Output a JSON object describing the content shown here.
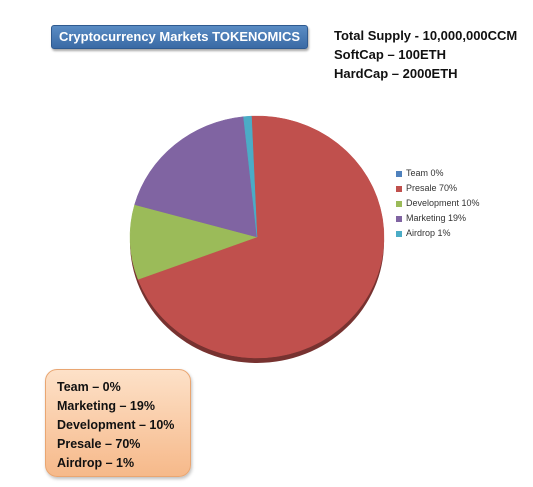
{
  "title": "Cryptocurrency Markets TOKENOMICS",
  "supply_info": [
    "Total Supply - 10,000,000CCM",
    "SoftCap – 100ETH",
    "HardCap – 2000ETH"
  ],
  "chart_data": {
    "type": "pie",
    "title": "",
    "slices": [
      {
        "label": "Team 0%",
        "name": "Team",
        "value": 0,
        "color": "#4f81bd"
      },
      {
        "label": "Presale 70%",
        "name": "Presale",
        "value": 70,
        "color": "#c0504d"
      },
      {
        "label": "Development 10%",
        "name": "Development",
        "value": 10,
        "color": "#9bbb59"
      },
      {
        "label": "Marketing 19%",
        "name": "Marketing",
        "value": 19,
        "color": "#8064a2"
      },
      {
        "label": "Airdrop 1%",
        "name": "Airdrop",
        "value": 1,
        "color": "#4bacc6"
      }
    ],
    "legend_position": "right"
  },
  "summary": [
    "Team – 0%",
    "Marketing – 19%",
    "Development – 10%",
    "Presale – 70%",
    "Airdrop – 1%"
  ]
}
